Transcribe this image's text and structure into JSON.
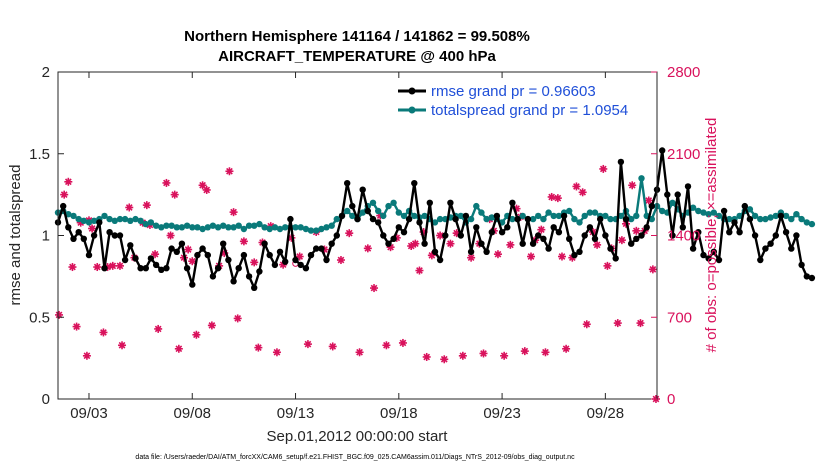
{
  "chart_data": {
    "type": "line",
    "title_line1": "Northern Hemisphere 141164 / 141862 = 99.508%",
    "title_line2": "AIRCRAFT_TEMPERATURE @ 400 hPa",
    "xlabel": "Sep.01,2012 00:00:00 start",
    "ylabel": "rmse and totalspread",
    "ylabel_right": "# of obs: o=possible; ×=assimilated",
    "footnote": "data file: /Users/raeder/DAI/ATM_forcXX/CAM6_setup/f.e21.FHIST_BGC.f09_025.CAM6assim.011/Diags_NTrS_2012-09/obs_diag_output.nc",
    "x_range_days": [
      1.5,
      30.5
    ],
    "x_ticks": [
      {
        "day": 3,
        "label": "09/03"
      },
      {
        "day": 8,
        "label": "09/08"
      },
      {
        "day": 13,
        "label": "09/13"
      },
      {
        "day": 18,
        "label": "09/18"
      },
      {
        "day": 23,
        "label": "09/23"
      },
      {
        "day": 28,
        "label": "09/28"
      }
    ],
    "y_left": {
      "range": [
        0,
        2
      ],
      "ticks": [
        "0",
        "0.5",
        "1",
        "1.5",
        "2"
      ]
    },
    "y_right": {
      "range": [
        0,
        2800
      ],
      "ticks": [
        "0",
        "700",
        "1400",
        "2100",
        "2800"
      ]
    },
    "grid": false,
    "legend_position": "top-right",
    "series": [
      {
        "name": "rmse grand pr = 0.96603",
        "color": "#000000",
        "axis": "left",
        "start_day": 1.5,
        "step_days": 0.25,
        "values": [
          1.08,
          1.18,
          1.05,
          0.98,
          1.02,
          0.98,
          0.88,
          1.0,
          1.08,
          0.8,
          1.02,
          1.0,
          1.0,
          0.85,
          0.94,
          0.86,
          0.8,
          0.8,
          0.86,
          0.82,
          0.79,
          0.8,
          0.92,
          0.9,
          0.95,
          0.8,
          0.7,
          0.88,
          0.92,
          0.88,
          0.75,
          0.8,
          0.95,
          0.85,
          0.72,
          0.8,
          0.88,
          0.75,
          0.68,
          0.78,
          0.95,
          0.88,
          0.82,
          0.9,
          0.84,
          1.1,
          0.85,
          0.82,
          0.8,
          0.88,
          0.92,
          0.92,
          0.85,
          0.95,
          1.0,
          1.12,
          1.32,
          1.18,
          1.1,
          1.28,
          1.15,
          1.1,
          1.08,
          1.0,
          0.95,
          0.98,
          1.05,
          1.02,
          1.1,
          1.32,
          1.08,
          0.95,
          1.2,
          0.9,
          0.85,
          1.0,
          1.2,
          1.1,
          1.0,
          1.12,
          0.9,
          1.05,
          0.95,
          0.9,
          1.02,
          1.12,
          1.02,
          1.05,
          1.2,
          1.1,
          0.95,
          1.1,
          0.95,
          1.0,
          0.98,
          0.92,
          1.05,
          1.02,
          1.12,
          0.98,
          0.88,
          0.9,
          1.0,
          1.05,
          0.98,
          1.1,
          1.0,
          0.92,
          0.86,
          1.45,
          1.1,
          0.95,
          0.98,
          1.0,
          1.05,
          1.18,
          1.28,
          1.52,
          1.25,
          1.0,
          1.25,
          1.05,
          1.3,
          0.92,
          1.02,
          0.88,
          0.86,
          0.9,
          0.85,
          1.15,
          1.02,
          1.08,
          1.02,
          1.18,
          1.1,
          1.0,
          0.85,
          0.92,
          0.95,
          1.0,
          1.12,
          1.02,
          0.92,
          1.0,
          0.82,
          0.75,
          0.74
        ]
      },
      {
        "name": "totalspread grand pr = 1.0954",
        "color": "#0a7a7a",
        "axis": "left",
        "start_day": 1.5,
        "step_days": 0.25,
        "values": [
          1.14,
          1.15,
          1.13,
          1.12,
          1.1,
          1.09,
          1.08,
          1.09,
          1.1,
          1.12,
          1.1,
          1.09,
          1.1,
          1.1,
          1.09,
          1.1,
          1.09,
          1.07,
          1.08,
          1.06,
          1.05,
          1.06,
          1.06,
          1.05,
          1.05,
          1.06,
          1.05,
          1.05,
          1.04,
          1.05,
          1.06,
          1.05,
          1.06,
          1.05,
          1.05,
          1.06,
          1.04,
          1.06,
          1.06,
          1.07,
          1.05,
          1.04,
          1.05,
          1.04,
          1.05,
          1.05,
          1.05,
          1.05,
          1.04,
          1.03,
          1.03,
          1.04,
          1.05,
          1.06,
          1.1,
          1.12,
          1.15,
          1.12,
          1.1,
          1.14,
          1.18,
          1.2,
          1.15,
          1.12,
          1.18,
          1.2,
          1.14,
          1.12,
          1.15,
          1.12,
          1.11,
          1.12,
          1.1,
          1.08,
          1.1,
          1.1,
          1.11,
          1.12,
          1.12,
          1.08,
          1.1,
          1.18,
          1.14,
          1.1,
          1.11,
          1.1,
          1.08,
          1.12,
          1.1,
          1.1,
          1.12,
          1.1,
          1.1,
          1.12,
          1.1,
          1.14,
          1.12,
          1.12,
          1.14,
          1.15,
          1.1,
          1.08,
          1.12,
          1.14,
          1.14,
          1.12,
          1.12,
          1.1,
          1.1,
          1.12,
          1.15,
          1.1,
          1.12,
          1.35,
          1.12,
          1.1,
          1.18,
          1.15,
          1.14,
          1.2,
          1.16,
          1.12,
          1.14,
          1.17,
          1.15,
          1.14,
          1.13,
          1.14,
          1.12,
          1.1,
          1.1,
          1.1,
          1.12,
          1.15,
          1.16,
          1.12,
          1.1,
          1.1,
          1.11,
          1.12,
          1.14,
          1.12,
          1.1,
          1.13,
          1.1,
          1.08,
          1.07
        ]
      },
      {
        "name": "# obs assimilated",
        "color": "#d9125c",
        "axis": "right",
        "points": [
          [
            1.55,
            720
          ],
          [
            1.8,
            1750
          ],
          [
            2.0,
            1860
          ],
          [
            2.2,
            1130
          ],
          [
            2.4,
            620
          ],
          [
            2.6,
            1510
          ],
          [
            3.0,
            1530
          ],
          [
            2.9,
            370
          ],
          [
            3.15,
            1460
          ],
          [
            3.4,
            1130
          ],
          [
            3.7,
            570
          ],
          [
            3.9,
            1130
          ],
          [
            4.15,
            1140
          ],
          [
            4.5,
            1140
          ],
          [
            4.6,
            460
          ],
          [
            4.95,
            1640
          ],
          [
            5.2,
            1210
          ],
          [
            5.6,
            1510
          ],
          [
            5.8,
            1660
          ],
          [
            5.95,
            1490
          ],
          [
            6.2,
            1240
          ],
          [
            6.35,
            600
          ],
          [
            6.75,
            1850
          ],
          [
            7.15,
            1750
          ],
          [
            6.95,
            1400
          ],
          [
            7.35,
            430
          ],
          [
            7.6,
            1210
          ],
          [
            7.8,
            1280
          ],
          [
            8.0,
            1180
          ],
          [
            8.2,
            550
          ],
          [
            8.5,
            1830
          ],
          [
            8.7,
            1790
          ],
          [
            8.95,
            630
          ],
          [
            9.3,
            1140
          ],
          [
            9.55,
            1250
          ],
          [
            9.8,
            1950
          ],
          [
            10.0,
            1600
          ],
          [
            10.2,
            690
          ],
          [
            10.5,
            1350
          ],
          [
            11.0,
            1170
          ],
          [
            11.2,
            440
          ],
          [
            11.4,
            1340
          ],
          [
            11.8,
            1480
          ],
          [
            12.1,
            400
          ],
          [
            12.4,
            1150
          ],
          [
            12.8,
            1380
          ],
          [
            13.2,
            1220
          ],
          [
            13.6,
            470
          ],
          [
            14.0,
            1430
          ],
          [
            14.4,
            1280
          ],
          [
            14.8,
            450
          ],
          [
            15.2,
            1190
          ],
          [
            15.6,
            1420
          ],
          [
            16.1,
            400
          ],
          [
            16.5,
            1290
          ],
          [
            16.8,
            950
          ],
          [
            17.1,
            1570
          ],
          [
            17.4,
            460
          ],
          [
            17.6,
            1300
          ],
          [
            17.9,
            1380
          ],
          [
            18.2,
            480
          ],
          [
            18.6,
            1310
          ],
          [
            18.8,
            1330
          ],
          [
            19.0,
            1100
          ],
          [
            19.2,
            1430
          ],
          [
            19.35,
            360
          ],
          [
            19.6,
            1230
          ],
          [
            20.0,
            1400
          ],
          [
            20.2,
            340
          ],
          [
            20.5,
            1330
          ],
          [
            20.8,
            1420
          ],
          [
            21.1,
            370
          ],
          [
            21.5,
            1210
          ],
          [
            21.9,
            1330
          ],
          [
            22.1,
            390
          ],
          [
            22.4,
            1540
          ],
          [
            22.6,
            1440
          ],
          [
            22.8,
            1240
          ],
          [
            23.1,
            370
          ],
          [
            23.4,
            1320
          ],
          [
            23.7,
            1630
          ],
          [
            23.9,
            1560
          ],
          [
            24.1,
            410
          ],
          [
            24.4,
            1220
          ],
          [
            24.6,
            1360
          ],
          [
            24.9,
            1450
          ],
          [
            25.1,
            400
          ],
          [
            25.4,
            1730
          ],
          [
            25.7,
            1720
          ],
          [
            25.9,
            1220
          ],
          [
            26.1,
            430
          ],
          [
            26.4,
            1210
          ],
          [
            26.6,
            1820
          ],
          [
            26.9,
            1770
          ],
          [
            27.1,
            640
          ],
          [
            27.4,
            1430
          ],
          [
            27.6,
            1320
          ],
          [
            27.9,
            1970
          ],
          [
            28.1,
            1140
          ],
          [
            28.3,
            1290
          ],
          [
            28.6,
            650
          ],
          [
            28.8,
            1360
          ],
          [
            29.0,
            1500
          ],
          [
            29.3,
            1830
          ],
          [
            29.5,
            1440
          ],
          [
            29.7,
            650
          ],
          [
            29.9,
            1440
          ],
          [
            30.1,
            1700
          ],
          [
            30.3,
            1110
          ],
          [
            30.45,
            0
          ]
        ]
      },
      {
        "name": "# obs possible",
        "color": "#d9125c",
        "axis": "right",
        "points": [
          [
            13.0,
            1160
          ]
        ]
      }
    ]
  }
}
